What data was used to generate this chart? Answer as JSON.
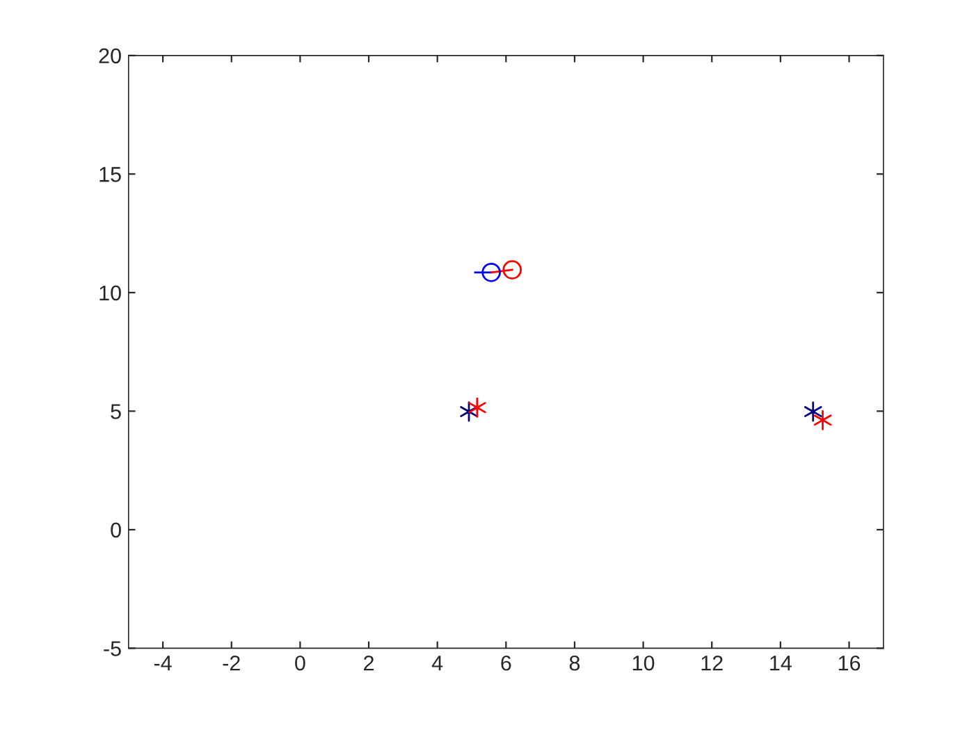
{
  "chart_data": {
    "type": "scatter",
    "xlim": [
      -5,
      17
    ],
    "ylim": [
      -5,
      20
    ],
    "xticks": [
      -4,
      -2,
      0,
      2,
      4,
      6,
      8,
      10,
      12,
      14,
      16
    ],
    "yticks": [
      -5,
      0,
      5,
      10,
      15,
      20
    ],
    "grid": false,
    "legend": false,
    "series": [
      {
        "type": "line",
        "color": "#0000ff",
        "x": [
          5.1,
          5.57
        ],
        "values": [
          10.85,
          10.85
        ],
        "marker": "none"
      },
      {
        "type": "line",
        "color": "#ff0000",
        "x": [
          5.57,
          6.18
        ],
        "values": [
          10.85,
          10.96
        ],
        "marker": "none"
      },
      {
        "color": "#0000ff",
        "x": [
          5.57
        ],
        "values": [
          10.85
        ],
        "marker": "circle"
      },
      {
        "color": "#ff0000",
        "x": [
          6.18
        ],
        "values": [
          10.96
        ],
        "marker": "circle"
      },
      {
        "color": "#000080",
        "x": [
          4.92,
          14.95
        ],
        "values": [
          4.98,
          4.98
        ],
        "marker": "cross"
      },
      {
        "color": "#ff0000",
        "x": [
          5.16,
          15.23
        ],
        "values": [
          5.15,
          4.62
        ],
        "marker": "cross"
      }
    ]
  }
}
